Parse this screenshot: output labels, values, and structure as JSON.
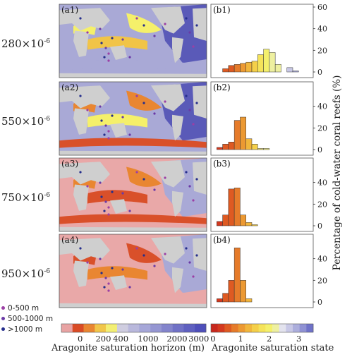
{
  "chart_data": {
    "maps": [
      {
        "label": "(a1)",
        "co2": "280",
        "exponent": "-6"
      },
      {
        "label": "(a2)",
        "co2": "550",
        "exponent": "-6"
      },
      {
        "label": "(a3)",
        "co2": "750",
        "exponent": "-6"
      },
      {
        "label": "(a4)",
        "co2": "950",
        "exponent": "-6"
      }
    ],
    "depth_legend": [
      {
        "label": "0-500 m",
        "color": "#9b3fa5"
      },
      {
        "label": "500-1000 m",
        "color": "#6a3aa6"
      },
      {
        "label": ">1000 m",
        "color": "#252e8c"
      }
    ],
    "horizon_colorbar": {
      "label": "Aragonite saturation horizon (m)",
      "ticks": [
        "0",
        "200",
        "400",
        "1000",
        "2000",
        "3000"
      ],
      "colors": [
        "#e8a3a3",
        "#d94b25",
        "#e98631",
        "#f1c64a",
        "#f3ef74",
        "#cfcde0",
        "#b9b8dc",
        "#a6a7d8",
        "#9596d2",
        "#8384cc",
        "#7071c6",
        "#5f60c0",
        "#4e4fba"
      ]
    },
    "state_colorbar": {
      "label": "Aragonite saturation state",
      "ticks": [
        "0",
        "1",
        "2",
        "3"
      ],
      "colors": [
        "#c8281e",
        "#d4391f",
        "#de5a22",
        "#e67b2a",
        "#ec9932",
        "#f1b63c",
        "#f4cf49",
        "#f5e35a",
        "#f4f06c",
        "#eef0a0",
        "#e3e3ee",
        "#c8c8e6",
        "#acaedc",
        "#8f91d3",
        "#6f72c8"
      ]
    },
    "histograms": [
      {
        "label": "(b1)",
        "type": "bar",
        "bins": [
          0.4,
          0.6,
          0.8,
          1.0,
          1.2,
          1.4,
          1.6,
          1.8,
          2.0,
          2.2,
          2.4,
          2.6,
          2.8
        ],
        "values": [
          3,
          6,
          7,
          8,
          9,
          10,
          16,
          21,
          18,
          7,
          0,
          4,
          1
        ]
      },
      {
        "label": "(b2)",
        "type": "bar",
        "bins": [
          0.2,
          0.4,
          0.6,
          0.8,
          1.0,
          1.2,
          1.4,
          1.6,
          1.8
        ],
        "values": [
          2,
          5,
          7,
          27,
          30,
          10,
          5,
          1,
          1
        ]
      },
      {
        "label": "(b3)",
        "type": "bar",
        "bins": [
          0.2,
          0.4,
          0.6,
          0.8,
          1.0,
          1.2,
          1.4
        ],
        "values": [
          4,
          10,
          34,
          35,
          10,
          3,
          1
        ]
      },
      {
        "label": "(b4)",
        "type": "bar",
        "bins": [
          0.2,
          0.4,
          0.6,
          0.8,
          1.0,
          1.2
        ],
        "values": [
          3,
          8,
          20,
          50,
          20,
          3
        ]
      }
    ],
    "hist_axis": {
      "xlim": [
        0,
        3.5
      ],
      "ylim": [
        0,
        60
      ],
      "yticks_first": [
        "0",
        "20",
        "40",
        "60"
      ],
      "yticks_other": [
        "0",
        "20",
        "40"
      ],
      "xticks": [
        "0",
        "1",
        "2",
        "3"
      ],
      "ylabel": "Percentage of cold-water coral reefs (%)"
    },
    "colors": {
      "land": "#cfcfcf",
      "ocean_cool": "#a9a9d6",
      "ocean_deep": "#5a5ab8",
      "ocean_warm": "#f1c447",
      "ocean_orange": "#e98631",
      "ocean_red": "#d9502a",
      "ocean_pink": "#e9a8a8",
      "yellow_band": "#f5f06a"
    }
  }
}
